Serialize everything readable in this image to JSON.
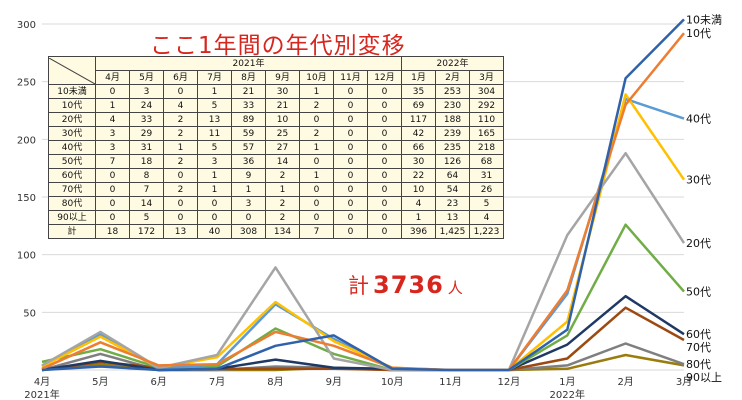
{
  "title": "ここ1年間の年代別変移",
  "total": {
    "prefix": "計",
    "value": "3736",
    "unit": "人"
  },
  "table": {
    "year_headers": [
      {
        "label": "2021年",
        "span": 9
      },
      {
        "label": "2022年",
        "span": 3
      }
    ],
    "months": [
      "4月",
      "5月",
      "6月",
      "7月",
      "8月",
      "9月",
      "10月",
      "11月",
      "12月",
      "1月",
      "2月",
      "3月"
    ],
    "rows": [
      {
        "label": "10未満",
        "values": [
          "0",
          "3",
          "0",
          "1",
          "21",
          "30",
          "1",
          "0",
          "0",
          "35",
          "253",
          "304"
        ]
      },
      {
        "label": "10代",
        "values": [
          "1",
          "24",
          "4",
          "5",
          "33",
          "21",
          "2",
          "0",
          "0",
          "69",
          "230",
          "292"
        ]
      },
      {
        "label": "20代",
        "values": [
          "4",
          "33",
          "2",
          "13",
          "89",
          "10",
          "0",
          "0",
          "0",
          "117",
          "188",
          "110"
        ]
      },
      {
        "label": "30代",
        "values": [
          "3",
          "29",
          "2",
          "11",
          "59",
          "25",
          "2",
          "0",
          "0",
          "42",
          "239",
          "165"
        ]
      },
      {
        "label": "40代",
        "values": [
          "3",
          "31",
          "1",
          "5",
          "57",
          "27",
          "1",
          "0",
          "0",
          "66",
          "235",
          "218"
        ]
      },
      {
        "label": "50代",
        "values": [
          "7",
          "18",
          "2",
          "3",
          "36",
          "14",
          "0",
          "0",
          "0",
          "30",
          "126",
          "68"
        ]
      },
      {
        "label": "60代",
        "values": [
          "0",
          "8",
          "0",
          "1",
          "9",
          "2",
          "1",
          "0",
          "0",
          "22",
          "64",
          "31"
        ]
      },
      {
        "label": "70代",
        "values": [
          "0",
          "7",
          "2",
          "1",
          "1",
          "1",
          "0",
          "0",
          "0",
          "10",
          "54",
          "26"
        ]
      },
      {
        "label": "80代",
        "values": [
          "0",
          "14",
          "0",
          "0",
          "3",
          "2",
          "0",
          "0",
          "0",
          "4",
          "23",
          "5"
        ]
      },
      {
        "label": "90以上",
        "values": [
          "0",
          "5",
          "0",
          "0",
          "0",
          "2",
          "0",
          "0",
          "0",
          "1",
          "13",
          "4"
        ]
      },
      {
        "label": "計",
        "values": [
          "18",
          "172",
          "13",
          "40",
          "308",
          "134",
          "7",
          "0",
          "0",
          "396",
          "1,425",
          "1,223"
        ]
      }
    ]
  },
  "chart_data": {
    "type": "line",
    "x": [
      "4月",
      "5月",
      "6月",
      "7月",
      "8月",
      "9月",
      "10月",
      "11月",
      "12月",
      "1月",
      "2月",
      "3月"
    ],
    "x_tick_labels": [
      "4月",
      "5月",
      "6月",
      "7月",
      "8月",
      "9月",
      "10月",
      "11月",
      "12月",
      "1月",
      "2月",
      "3月"
    ],
    "x_sub_labels": [
      {
        "index": 0,
        "text": "2021年"
      },
      {
        "index": 9,
        "text": "2022年"
      }
    ],
    "ylim": [
      0,
      300
    ],
    "y_ticks": [
      0,
      50,
      100,
      150,
      200,
      250,
      300
    ],
    "y_tick_labels": [
      "",
      "50",
      "100",
      "150",
      "200",
      "250",
      "300"
    ],
    "grid": true,
    "series": [
      {
        "name": "10未満",
        "color": "#2f62ab",
        "values": [
          0,
          3,
          0,
          1,
          21,
          30,
          1,
          0,
          0,
          35,
          253,
          304
        ]
      },
      {
        "name": "10代",
        "color": "#ed7d31",
        "values": [
          1,
          24,
          4,
          5,
          33,
          21,
          2,
          0,
          0,
          69,
          230,
          292
        ]
      },
      {
        "name": "20代",
        "color": "#a5a5a5",
        "values": [
          4,
          33,
          2,
          13,
          89,
          10,
          0,
          0,
          0,
          117,
          188,
          110
        ]
      },
      {
        "name": "30代",
        "color": "#ffc000",
        "values": [
          3,
          29,
          2,
          11,
          59,
          25,
          2,
          0,
          0,
          42,
          239,
          165
        ]
      },
      {
        "name": "40代",
        "color": "#5b9bd5",
        "values": [
          3,
          31,
          1,
          5,
          57,
          27,
          1,
          0,
          0,
          66,
          235,
          218
        ]
      },
      {
        "name": "50代",
        "color": "#70ad47",
        "values": [
          7,
          18,
          2,
          3,
          36,
          14,
          0,
          0,
          0,
          30,
          126,
          68
        ]
      },
      {
        "name": "60代",
        "color": "#1f3864",
        "values": [
          0,
          8,
          0,
          1,
          9,
          2,
          1,
          0,
          0,
          22,
          64,
          31
        ]
      },
      {
        "name": "70代",
        "color": "#9c4a12",
        "values": [
          0,
          7,
          2,
          1,
          1,
          1,
          0,
          0,
          0,
          10,
          54,
          26
        ]
      },
      {
        "name": "80代",
        "color": "#7f7f7f",
        "values": [
          0,
          14,
          0,
          0,
          3,
          2,
          0,
          0,
          0,
          4,
          23,
          5
        ]
      },
      {
        "name": "90以上",
        "color": "#9a7b0c",
        "values": [
          0,
          5,
          0,
          0,
          0,
          2,
          0,
          0,
          0,
          1,
          13,
          4
        ]
      }
    ]
  }
}
